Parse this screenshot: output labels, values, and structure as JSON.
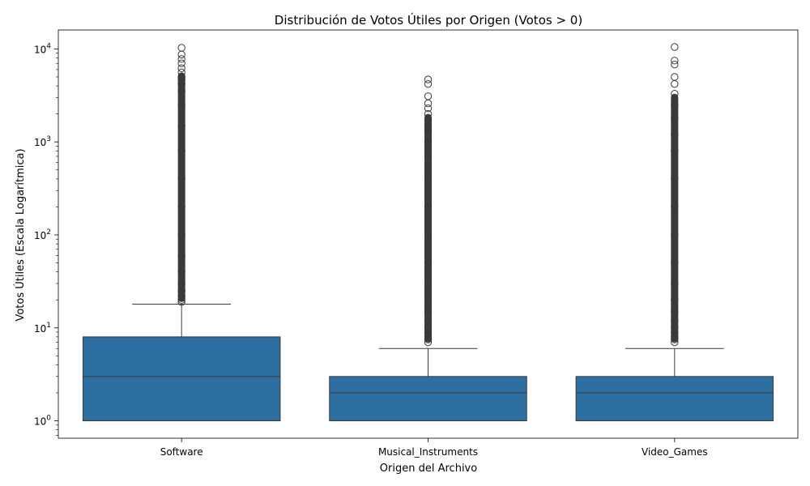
{
  "chart_data": {
    "type": "box",
    "title": "Distribución de Votos Útiles por Origen (Votos > 0)",
    "xlabel": "Origen del Archivo",
    "ylabel": "Votos Útiles (Escala Logarítmica)",
    "yscale": "log",
    "ylim": [
      0.65,
      16000
    ],
    "y_ticks": [
      {
        "value": 1,
        "exp": "0"
      },
      {
        "value": 10,
        "exp": "1"
      },
      {
        "value": 100,
        "exp": "2"
      },
      {
        "value": 1000,
        "exp": "3"
      },
      {
        "value": 10000,
        "exp": "4"
      }
    ],
    "tick_base": "10",
    "grid": false,
    "colors": {
      "box": "#2e6fa2",
      "line": "#3a3a3a",
      "outlier_edge": "#3a3a3a"
    },
    "categories": [
      "Software",
      "Musical_Instruments",
      "Video_Games"
    ],
    "boxes": [
      {
        "category": "Software",
        "min": 1,
        "q1": 1,
        "median": 3,
        "q3": 8,
        "whisker_high": 18,
        "outliers": [
          19,
          20,
          22,
          25,
          30,
          40,
          60,
          100,
          200,
          400,
          800,
          1500,
          2500,
          3500,
          4200,
          4700,
          5000,
          5600,
          6200,
          7000,
          7800,
          8700,
          10300
        ]
      },
      {
        "category": "Musical_Instruments",
        "min": 1,
        "q1": 1,
        "median": 2,
        "q3": 3,
        "whisker_high": 6,
        "outliers": [
          7,
          7.5,
          8,
          9,
          10,
          12,
          15,
          20,
          30,
          50,
          100,
          200,
          400,
          700,
          1000,
          1300,
          1700,
          2000,
          2300,
          2600,
          3100,
          4200,
          4700
        ]
      },
      {
        "category": "Video_Games",
        "min": 1,
        "q1": 1,
        "median": 2,
        "q3": 3,
        "whisker_high": 6,
        "outliers": [
          7,
          7.5,
          8,
          9,
          10,
          12,
          15,
          20,
          30,
          50,
          100,
          200,
          400,
          800,
          1200,
          1800,
          2500,
          3300,
          4200,
          5000,
          6800,
          7500,
          10500
        ]
      }
    ]
  }
}
